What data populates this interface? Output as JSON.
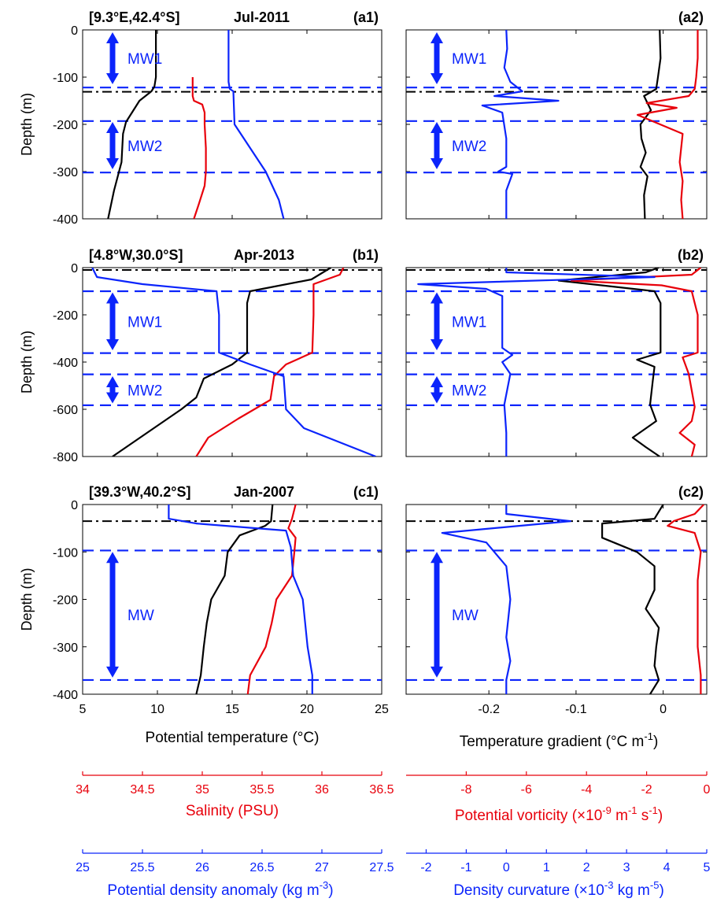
{
  "figure": {
    "y_axis_label": "Depth (m)",
    "x_axes": {
      "temperature": {
        "label": "Potential temperature (°C)",
        "range": [
          5,
          25
        ],
        "ticks": [
          5,
          10,
          15,
          20,
          25
        ],
        "color": "#000000"
      },
      "salinity": {
        "label": "Salinity (PSU)",
        "range": [
          34,
          36.5
        ],
        "ticks": [
          34,
          34.5,
          35,
          35.5,
          36,
          36.5
        ],
        "color": "#e8000b"
      },
      "density": {
        "label": "Potential density anomaly (kg m",
        "label_sup": "-3",
        "label_end": ")",
        "range": [
          25,
          27.5
        ],
        "ticks": [
          25,
          25.5,
          26,
          26.5,
          27,
          27.5
        ],
        "color": "#0b24fb"
      },
      "gradient": {
        "label": "Temperature gradient (°C m",
        "label_sup": "-1",
        "label_end": ")",
        "range": [
          -0.295,
          0.05
        ],
        "ticks": [
          -0.2,
          -0.1,
          0
        ],
        "color": "#000000"
      },
      "vorticity": {
        "label": "Potential vorticity (×10",
        "label_sup1": "-9",
        "label_mid": " m",
        "label_sup2": "-1",
        "label_mid2": " s",
        "label_sup3": "-1",
        "label_end": ")",
        "range": [
          -10,
          0
        ],
        "ticks": [
          -8,
          -6,
          -4,
          -2,
          0
        ],
        "color": "#e8000b"
      },
      "curvature": {
        "label": "Density curvature (×10",
        "label_sup1": "-3",
        "label_mid": " kg m",
        "label_sup2": "-5",
        "label_end": ")",
        "range": [
          -2.5,
          5
        ],
        "ticks": [
          -2,
          -1,
          0,
          1,
          2,
          3,
          4,
          5
        ],
        "color": "#0b24fb"
      }
    }
  },
  "chart_data": [
    {
      "type": "line",
      "panel": "a1",
      "title_location": "[9.3°E,42.4°S]",
      "title_date": "Jul-2011",
      "tag": "(a1)",
      "ylim": [
        -400,
        0
      ],
      "yticks": [
        0,
        -100,
        -200,
        -300,
        -400
      ],
      "series": [
        {
          "axis": "temperature",
          "color": "#000000",
          "x": [
            9.9,
            9.9,
            9.9,
            9.8,
            9.6,
            8.8,
            8.3,
            7.9,
            7.7,
            7.6,
            7.1,
            6.7
          ],
          "y": [
            0,
            -60,
            -100,
            -120,
            -130,
            -150,
            -175,
            -195,
            -220,
            -280,
            -340,
            -400
          ]
        },
        {
          "axis": "salinity",
          "color": "#e8000b",
          "x": [
            34.92,
            34.92,
            34.92,
            34.93,
            35.0,
            35.02,
            35.02,
            35.03,
            35.03,
            35.02,
            34.97,
            34.93
          ],
          "y": [
            -100,
            -115,
            -140,
            -150,
            -158,
            -175,
            -200,
            -250,
            -300,
            -330,
            -370,
            -400
          ]
        },
        {
          "axis": "density",
          "color": "#0b24fb",
          "x": [
            26.22,
            26.22,
            26.23,
            26.26,
            26.27,
            26.53,
            26.64,
            26.68
          ],
          "y": [
            0,
            -110,
            -125,
            -130,
            -200,
            -300,
            -360,
            -400
          ]
        }
      ],
      "arrows": [
        {
          "label": "MW1",
          "y_top": -5,
          "y_bottom": -115
        },
        {
          "label": "MW2",
          "y_top": -195,
          "y_bottom": -295
        }
      ],
      "dashed_lines": [
        -122,
        -193,
        -302
      ],
      "dashdot_lines": [
        -131
      ]
    },
    {
      "type": "line",
      "panel": "a2",
      "tag": "(a2)",
      "ylim": [
        -400,
        0
      ],
      "series": [
        {
          "axis": "gradient",
          "color": "#000000",
          "x": [
            -0.004,
            -0.003,
            -0.006,
            -0.008,
            -0.022,
            -0.014,
            -0.026,
            -0.025,
            -0.02,
            -0.026,
            -0.018,
            -0.022,
            -0.021
          ],
          "y": [
            0,
            -60,
            -100,
            -125,
            -140,
            -170,
            -200,
            -230,
            -260,
            -290,
            -310,
            -350,
            -400
          ]
        },
        {
          "axis": "vorticity",
          "color": "#e8000b",
          "x": [
            -0.3,
            -0.3,
            -0.35,
            -0.4,
            -0.6,
            -2.0,
            -1.0,
            -2.3,
            -0.8,
            -0.9,
            -0.8,
            -0.85,
            -0.8
          ],
          "y": [
            0,
            -60,
            -100,
            -125,
            -140,
            -155,
            -165,
            -180,
            -220,
            -280,
            -320,
            -360,
            -400
          ]
        },
        {
          "axis": "curvature",
          "color": "#0b24fb",
          "x": [
            0.0,
            0.02,
            -0.05,
            0.1,
            0.4,
            -0.3,
            1.3,
            -0.6,
            -0.1,
            0.0,
            0.0,
            -0.2,
            0.15,
            0.0,
            0.0
          ],
          "y": [
            0,
            -40,
            -80,
            -110,
            -130,
            -140,
            -150,
            -160,
            -175,
            -230,
            -290,
            -300,
            -305,
            -340,
            -400
          ]
        }
      ],
      "dashed_lines": [
        -122,
        -193,
        -302
      ],
      "dashdot_lines": [
        -131
      ],
      "arrows": [
        {
          "label": "MW1",
          "y_top": -5,
          "y_bottom": -115
        },
        {
          "label": "MW2",
          "y_top": -195,
          "y_bottom": -295
        }
      ]
    },
    {
      "type": "line",
      "panel": "b1",
      "title_location": "[4.8°W,30.0°S]",
      "title_date": "Apr-2013",
      "tag": "(b1)",
      "ylim": [
        -800,
        0
      ],
      "yticks": [
        0,
        -200,
        -400,
        -600,
        -800
      ],
      "series": [
        {
          "axis": "temperature",
          "color": "#000000",
          "x": [
            21.6,
            20.3,
            16.2,
            16.0,
            16.0,
            15.0,
            13.1,
            12.6,
            11.6,
            9.3,
            7.0
          ],
          "y": [
            0,
            -50,
            -100,
            -150,
            -360,
            -410,
            -470,
            -550,
            -600,
            -700,
            -800
          ]
        },
        {
          "axis": "salinity",
          "color": "#e8000b",
          "x": [
            36.18,
            36.15,
            35.93,
            35.93,
            35.92,
            35.7,
            35.6,
            35.57,
            35.3,
            35.05,
            34.95
          ],
          "y": [
            0,
            -30,
            -70,
            -200,
            -360,
            -410,
            -460,
            -560,
            -640,
            -720,
            -800
          ]
        },
        {
          "axis": "density",
          "color": "#0b24fb",
          "x": [
            25.08,
            25.12,
            25.5,
            26.12,
            26.14,
            26.14,
            26.4,
            26.68,
            26.7,
            26.85,
            27.45
          ],
          "y": [
            0,
            -40,
            -70,
            -100,
            -200,
            -360,
            -410,
            -460,
            -600,
            -680,
            -800
          ]
        }
      ],
      "arrows": [
        {
          "label": "MW1",
          "y_top": -105,
          "y_bottom": -350
        },
        {
          "label": "MW2",
          "y_top": -460,
          "y_bottom": -575
        }
      ],
      "dashed_lines": [
        -100,
        -362,
        -452,
        -583
      ],
      "dashdot_lines": [
        -10
      ]
    },
    {
      "type": "line",
      "panel": "b2",
      "tag": "(b2)",
      "ylim": [
        -800,
        0
      ],
      "series": [
        {
          "axis": "gradient",
          "color": "#000000",
          "x": [
            -0.005,
            -0.02,
            -0.12,
            -0.01,
            -0.003,
            -0.003,
            -0.003,
            -0.03,
            -0.01,
            -0.012,
            -0.015,
            -0.008,
            -0.035,
            -0.02,
            -0.004
          ],
          "y": [
            0,
            -20,
            -55,
            -100,
            -150,
            -300,
            -360,
            -390,
            -420,
            -480,
            -580,
            -650,
            -720,
            -760,
            -800
          ]
        },
        {
          "axis": "vorticity",
          "color": "#e8000b",
          "x": [
            -0.2,
            -0.5,
            -4.5,
            -1.5,
            -0.5,
            -0.3,
            -0.3,
            -0.8,
            -0.6,
            -0.5,
            -0.4,
            -0.5,
            -0.9,
            -0.4,
            -0.5
          ],
          "y": [
            0,
            -30,
            -55,
            -75,
            -100,
            -200,
            -360,
            -380,
            -450,
            -520,
            -590,
            -650,
            -700,
            -750,
            -800
          ]
        },
        {
          "axis": "curvature",
          "color": "#0b24fb",
          "x": [
            0.0,
            0.0,
            3.7,
            -2.2,
            -0.5,
            -0.1,
            -0.1,
            0.15,
            -0.1,
            0.1,
            -0.05,
            0.0,
            0.0
          ],
          "y": [
            0,
            -20,
            -40,
            -70,
            -90,
            -120,
            -340,
            -370,
            -400,
            -450,
            -580,
            -700,
            -800
          ]
        }
      ],
      "dashed_lines": [
        -100,
        -362,
        -452,
        -583
      ],
      "dashdot_lines": [
        -10
      ],
      "arrows": [
        {
          "label": "MW1",
          "y_top": -105,
          "y_bottom": -350
        },
        {
          "label": "MW2",
          "y_top": -460,
          "y_bottom": -575
        }
      ]
    },
    {
      "type": "line",
      "panel": "c1",
      "title_location": "[39.3°W,40.2°S]",
      "title_date": "Jan-2007",
      "tag": "(c1)",
      "ylim": [
        -400,
        0
      ],
      "yticks": [
        0,
        -100,
        -200,
        -300,
        -400
      ],
      "series": [
        {
          "axis": "temperature",
          "color": "#000000",
          "x": [
            17.7,
            17.6,
            17.2,
            15.5,
            14.7,
            14.5,
            13.6,
            13.3,
            13.1,
            12.9,
            12.6
          ],
          "y": [
            0,
            -35,
            -45,
            -65,
            -100,
            -150,
            -200,
            -250,
            -300,
            -360,
            -400
          ]
        },
        {
          "axis": "salinity",
          "color": "#e8000b",
          "x": [
            35.78,
            35.75,
            35.72,
            35.78,
            35.77,
            35.75,
            35.62,
            35.58,
            35.53,
            35.4,
            35.38
          ],
          "y": [
            0,
            -30,
            -50,
            -70,
            -100,
            -150,
            -200,
            -250,
            -300,
            -360,
            -400
          ]
        },
        {
          "axis": "density",
          "color": "#0b24fb",
          "x": [
            25.72,
            25.72,
            25.95,
            26.7,
            26.74,
            26.76,
            26.84,
            26.88,
            26.92,
            26.92
          ],
          "y": [
            0,
            -30,
            -40,
            -55,
            -90,
            -150,
            -200,
            -300,
            -360,
            -400
          ]
        }
      ],
      "arrows": [
        {
          "label": "MW",
          "y_top": -100,
          "y_bottom": -365
        }
      ],
      "dashed_lines": [
        -97,
        -370
      ],
      "dashdot_lines": [
        -35
      ]
    },
    {
      "type": "line",
      "panel": "c2",
      "tag": "(c2)",
      "ylim": [
        -400,
        0
      ],
      "series": [
        {
          "axis": "gradient",
          "color": "#000000",
          "x": [
            0.0,
            -0.01,
            -0.07,
            -0.07,
            -0.03,
            -0.01,
            -0.01,
            -0.02,
            -0.005,
            -0.008,
            -0.01,
            -0.005,
            -0.015
          ],
          "y": [
            0,
            -30,
            -40,
            -70,
            -100,
            -130,
            -180,
            -220,
            -260,
            -300,
            -340,
            -370,
            -400
          ]
        },
        {
          "axis": "vorticity",
          "color": "#e8000b",
          "x": [
            -0.1,
            -0.4,
            -1.1,
            -1.3,
            -0.4,
            -0.2,
            -0.3,
            -0.3,
            -0.3,
            -0.2,
            -0.2
          ],
          "y": [
            0,
            -20,
            -35,
            -45,
            -60,
            -100,
            -160,
            -220,
            -300,
            -360,
            -400
          ]
        },
        {
          "axis": "curvature",
          "color": "#0b24fb",
          "x": [
            0.0,
            0.0,
            1.6,
            -1.6,
            -0.5,
            -0.3,
            0.0,
            0.1,
            0.0,
            0.1,
            0.0,
            0.0
          ],
          "y": [
            0,
            -20,
            -35,
            -60,
            -80,
            -100,
            -130,
            -200,
            -280,
            -330,
            -370,
            -400
          ]
        }
      ],
      "dashed_lines": [
        -97,
        -370
      ],
      "dashdot_lines": [
        -35
      ],
      "arrows": [
        {
          "label": "MW",
          "y_top": -100,
          "y_bottom": -365
        }
      ]
    }
  ]
}
